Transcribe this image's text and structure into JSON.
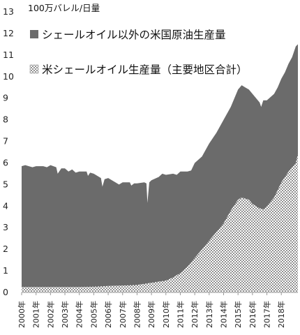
{
  "unit_label": "100万バレル/日量",
  "colors": {
    "non_shale": "#6b6b6b",
    "shale_dot": "#444444",
    "shale_bg": "#ffffff",
    "axis": "#999999"
  },
  "chart_data": {
    "type": "area",
    "stacked": true,
    "title": "",
    "xlabel": "",
    "ylabel": "100万バレル/日量",
    "ylim": [
      0,
      13
    ],
    "yticks": [
      0,
      1,
      2,
      3,
      4,
      5,
      6,
      7,
      8,
      9,
      10,
      11,
      12,
      13
    ],
    "xlim": [
      2000,
      2019.15
    ],
    "x_tick_labels": [
      "2000年",
      "2001年",
      "2002年",
      "2003年",
      "2004年",
      "2005年",
      "2006年",
      "2007年",
      "2008年",
      "2009年",
      "2010年",
      "2011年",
      "2012年",
      "2013年",
      "2014年",
      "2015年",
      "2016年",
      "2017年",
      "2018年"
    ],
    "grid": false,
    "legend_position": "top-left",
    "series": [
      {
        "name": "シェールオイル以外の米国原油生産量",
        "fill": "solid-gray",
        "total_x": [
          2000.0,
          2000.25,
          2000.5,
          2000.75,
          2001.0,
          2001.5,
          2001.75,
          2002.0,
          2002.4,
          2002.5,
          2002.75,
          2003.0,
          2003.25,
          2003.5,
          2003.75,
          2004.0,
          2004.5,
          2004.6,
          2004.75,
          2005.0,
          2005.5,
          2005.6,
          2005.75,
          2006.0,
          2006.5,
          2006.75,
          2007.0,
          2007.5,
          2007.6,
          2007.8,
          2008.0,
          2008.5,
          2008.65,
          2008.72,
          2008.85,
          2009.0,
          2009.5,
          2009.75,
          2010.0,
          2010.5,
          2010.75,
          2011.0,
          2011.5,
          2011.75,
          2012.0,
          2012.5,
          2013.0,
          2013.5,
          2014.0,
          2014.5,
          2015.0,
          2015.25,
          2015.5,
          2015.75,
          2016.0,
          2016.5,
          2016.6,
          2016.75,
          2017.0,
          2017.5,
          2017.75,
          2018.0,
          2018.25,
          2018.5,
          2018.75,
          2019.0,
          2019.15
        ],
        "total_y": [
          5.85,
          5.9,
          5.85,
          5.8,
          5.85,
          5.85,
          5.8,
          5.9,
          5.8,
          5.5,
          5.75,
          5.75,
          5.6,
          5.7,
          5.55,
          5.6,
          5.6,
          5.4,
          5.55,
          5.5,
          5.3,
          4.9,
          5.25,
          5.3,
          5.1,
          5.0,
          5.1,
          5.1,
          4.95,
          5.05,
          5.05,
          5.1,
          5.05,
          4.15,
          5.1,
          5.2,
          5.35,
          5.5,
          5.45,
          5.5,
          5.45,
          5.6,
          5.6,
          5.65,
          6.0,
          6.3,
          6.9,
          7.4,
          8.0,
          8.6,
          9.4,
          9.6,
          9.5,
          9.4,
          9.2,
          8.8,
          8.6,
          8.9,
          8.9,
          9.2,
          9.5,
          9.9,
          10.2,
          10.6,
          10.9,
          11.4,
          11.5
        ],
        "shale_x": [
          2000.0,
          2001.0,
          2002.0,
          2003.0,
          2004.0,
          2005.0,
          2006.0,
          2007.0,
          2008.0,
          2008.5,
          2009.0,
          2009.5,
          2010.0,
          2010.5,
          2011.0,
          2011.5,
          2012.0,
          2012.5,
          2013.0,
          2013.5,
          2014.0,
          2014.5,
          2015.0,
          2015.25,
          2015.5,
          2015.75,
          2016.0,
          2016.5,
          2016.75,
          2017.0,
          2017.5,
          2018.0,
          2018.5,
          2019.0,
          2019.15
        ],
        "shale_y": [
          0.25,
          0.25,
          0.25,
          0.25,
          0.25,
          0.27,
          0.3,
          0.32,
          0.35,
          0.4,
          0.45,
          0.5,
          0.55,
          0.7,
          0.9,
          1.2,
          1.6,
          2.0,
          2.4,
          2.8,
          3.2,
          3.8,
          4.3,
          4.4,
          4.35,
          4.3,
          4.1,
          3.9,
          3.85,
          4.0,
          4.4,
          5.1,
          5.6,
          6.0,
          6.4
        ]
      },
      {
        "name": "米シェールオイル生産量（主要地区合計）",
        "fill": "dotted"
      }
    ]
  }
}
